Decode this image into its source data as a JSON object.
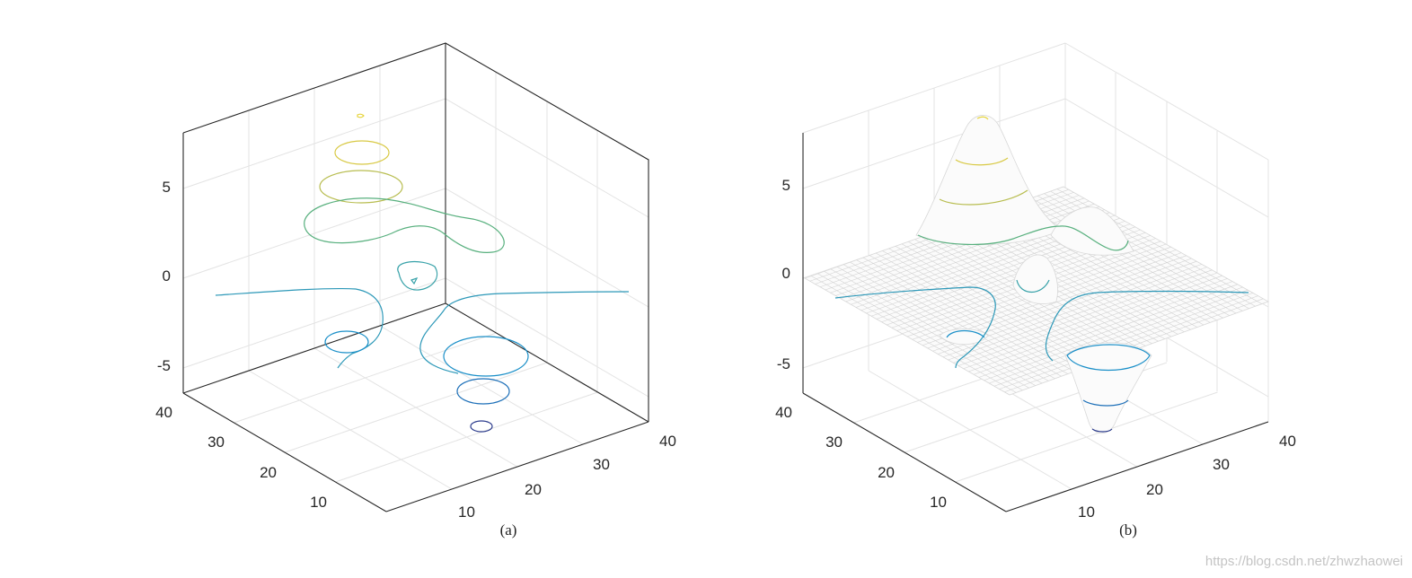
{
  "colors": {
    "axis": "#262626",
    "grid": "#e3e3e3",
    "mesh": "#d2d2d2",
    "level_high": "#e6d43a",
    "level_mid": "#58b07e",
    "level_low": "#1a8fc8",
    "level_min": "#2a3a8c"
  },
  "chart_data": [
    {
      "type": "contour3",
      "panel": "left",
      "caption": "(a)",
      "x_ticks": [
        "10",
        "20",
        "30",
        "40"
      ],
      "y_ticks": [
        "10",
        "20",
        "30",
        "40"
      ],
      "z_ticks": [
        "5",
        "0",
        "-5"
      ],
      "xlim": [
        0,
        40
      ],
      "ylim": [
        0,
        40
      ],
      "zlim": [
        -7,
        8
      ],
      "grid": true,
      "contour_levels": [
        8,
        6.5,
        5,
        3,
        0.5,
        -0.4,
        -3.5,
        -5.2,
        -6.5
      ]
    },
    {
      "type": "mesh_with_contours",
      "panel": "right",
      "caption": "(b)",
      "x_ticks": [
        "10",
        "20",
        "30",
        "40"
      ],
      "y_ticks": [
        "10",
        "20",
        "30",
        "40"
      ],
      "z_ticks": [
        "5",
        "0",
        "-5"
      ],
      "xlim": [
        0,
        40
      ],
      "ylim": [
        0,
        40
      ],
      "zlim": [
        -7,
        8
      ],
      "grid": true,
      "contour_levels": [
        8,
        6.5,
        5,
        3,
        0.5,
        -0.4,
        -3.5,
        -5.2,
        -6.5
      ]
    }
  ],
  "watermark": "https://blog.csdn.net/zhwzhaowei"
}
